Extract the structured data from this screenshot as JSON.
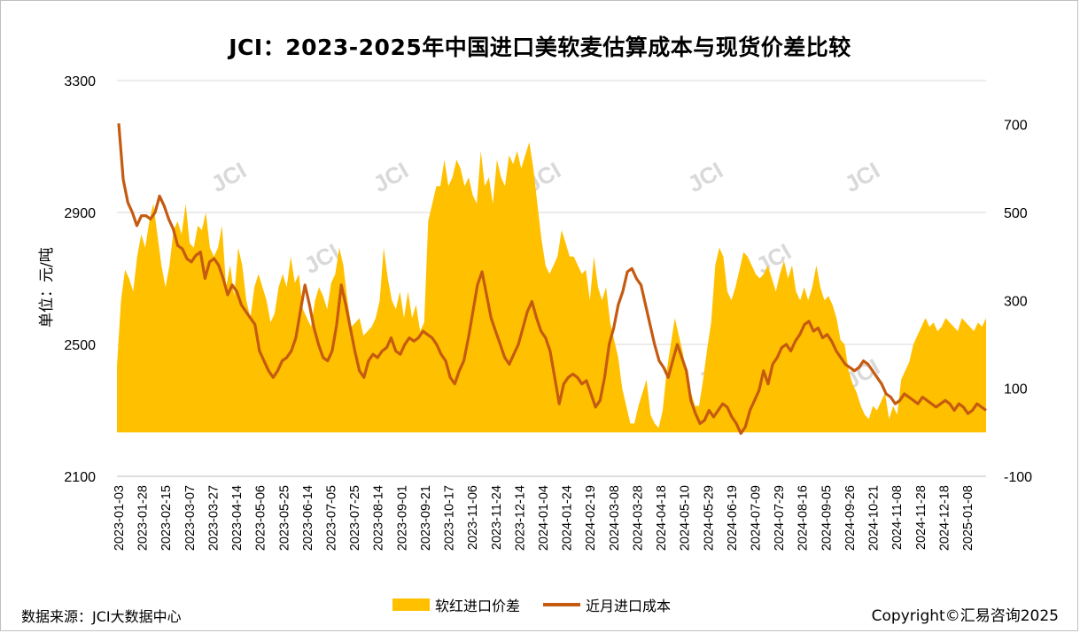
{
  "title": "JCI：2023-2025年中国进口美软麦估算成本与现货价差比较",
  "source": "数据来源：JCI大数据中心",
  "copyright": "Copyright©汇易咨询2025",
  "watermark": "JCI",
  "chart_data": {
    "type": "area+line",
    "title": "JCI：2023-2025年中国进口美软麦估算成本与现货价差比较",
    "ylabel": "单位：元/吨",
    "y_left": {
      "range": [
        2100,
        3300
      ],
      "ticks": [
        "3300",
        "2900",
        "2500",
        "2100"
      ]
    },
    "y_right": {
      "range": [
        -100,
        800
      ],
      "ticks": [
        "700",
        "500",
        "300",
        "100",
        "-100"
      ]
    },
    "x_ticks": [
      "2023-01-03",
      "2023-01-28",
      "2023-02-15",
      "2023-03-07",
      "2023-03-27",
      "2023-04-14",
      "2023-05-06",
      "2023-05-25",
      "2023-06-14",
      "2023-07-05",
      "2023-07-25",
      "2023-08-14",
      "2023-09-01",
      "2023-09-21",
      "2023-10-17",
      "2023-11-06",
      "2023-11-24",
      "2023-12-14",
      "2024-01-04",
      "2024-01-24",
      "2024-02-19",
      "2024-03-08",
      "2024-03-28",
      "2024-04-18",
      "2024-05-10",
      "2024-05-29",
      "2024-06-19",
      "2024-07-09",
      "2024-07-29",
      "2024-08-16",
      "2024-09-05",
      "2024-09-26",
      "2024-10-21",
      "2024-11-08",
      "2024-11-28",
      "2024-12-18",
      "2025-01-08"
    ],
    "series": [
      {
        "name": "软红进口价差",
        "axis": "right",
        "kind": "area",
        "color": "#FFC000",
        "values": [
          150,
          300,
          370,
          350,
          320,
          400,
          450,
          420,
          480,
          520,
          450,
          380,
          330,
          380,
          460,
          480,
          450,
          520,
          430,
          420,
          470,
          460,
          500,
          420,
          400,
          420,
          470,
          330,
          380,
          310,
          420,
          380,
          300,
          260,
          330,
          360,
          330,
          300,
          250,
          270,
          330,
          360,
          330,
          400,
          340,
          360,
          280,
          260,
          240,
          300,
          330,
          310,
          280,
          340,
          360,
          420,
          380,
          300,
          240,
          250,
          260,
          220,
          230,
          240,
          260,
          300,
          420,
          350,
          300,
          280,
          320,
          260,
          320,
          260,
          290,
          230,
          250,
          480,
          520,
          560,
          560,
          620,
          560,
          580,
          620,
          600,
          560,
          580,
          540,
          520,
          640,
          560,
          580,
          520,
          620,
          580,
          560,
          630,
          610,
          640,
          600,
          630,
          660,
          600,
          520,
          440,
          380,
          360,
          380,
          400,
          460,
          430,
          400,
          400,
          380,
          360,
          370,
          300,
          400,
          330,
          300,
          330,
          250,
          210,
          170,
          100,
          60,
          20,
          20,
          60,
          90,
          120,
          40,
          20,
          10,
          50,
          140,
          200,
          260,
          220,
          180,
          120,
          90,
          60,
          60,
          120,
          190,
          250,
          380,
          420,
          400,
          320,
          300,
          330,
          370,
          410,
          400,
          380,
          360,
          350,
          360,
          380,
          350,
          320,
          360,
          390,
          350,
          380,
          320,
          300,
          330,
          300,
          330,
          380,
          330,
          300,
          310,
          290,
          260,
          210,
          200,
          140,
          110,
          90,
          60,
          40,
          30,
          60,
          50,
          70,
          90,
          30,
          60,
          40,
          120,
          140,
          160,
          200,
          220,
          240,
          260,
          240,
          250,
          230,
          240,
          260,
          250,
          240,
          230,
          260,
          250,
          240,
          230,
          250,
          240,
          260
        ]
      },
      {
        "name": "近月进口成本",
        "axis": "left",
        "kind": "line",
        "color": "#C55A11",
        "values": [
          3170,
          3000,
          2930,
          2900,
          2860,
          2890,
          2890,
          2880,
          2900,
          2950,
          2920,
          2880,
          2850,
          2800,
          2790,
          2760,
          2750,
          2770,
          2780,
          2700,
          2750,
          2760,
          2740,
          2700,
          2650,
          2680,
          2660,
          2620,
          2600,
          2580,
          2560,
          2480,
          2450,
          2420,
          2400,
          2420,
          2450,
          2460,
          2480,
          2520,
          2600,
          2680,
          2620,
          2550,
          2500,
          2460,
          2450,
          2480,
          2560,
          2680,
          2620,
          2550,
          2480,
          2420,
          2400,
          2450,
          2470,
          2460,
          2480,
          2490,
          2520,
          2480,
          2470,
          2500,
          2520,
          2510,
          2520,
          2540,
          2530,
          2520,
          2500,
          2470,
          2450,
          2400,
          2380,
          2420,
          2450,
          2520,
          2600,
          2680,
          2720,
          2650,
          2580,
          2540,
          2500,
          2460,
          2440,
          2470,
          2500,
          2550,
          2600,
          2630,
          2580,
          2540,
          2520,
          2480,
          2400,
          2320,
          2380,
          2400,
          2410,
          2400,
          2380,
          2390,
          2350,
          2310,
          2330,
          2400,
          2500,
          2550,
          2620,
          2660,
          2720,
          2730,
          2700,
          2680,
          2620,
          2560,
          2500,
          2450,
          2430,
          2400,
          2450,
          2500,
          2460,
          2420,
          2330,
          2290,
          2260,
          2270,
          2300,
          2280,
          2300,
          2320,
          2310,
          2280,
          2260,
          2230,
          2250,
          2300,
          2330,
          2360,
          2420,
          2380,
          2440,
          2460,
          2490,
          2500,
          2480,
          2510,
          2530,
          2560,
          2570,
          2540,
          2550,
          2520,
          2530,
          2510,
          2480,
          2460,
          2440,
          2430,
          2420,
          2430,
          2450,
          2440,
          2420,
          2400,
          2380,
          2350,
          2340,
          2320,
          2330,
          2350,
          2340,
          2330,
          2320,
          2340,
          2330,
          2320,
          2310,
          2320,
          2330,
          2320,
          2300,
          2320,
          2310,
          2290,
          2300,
          2320,
          2310,
          2300
        ]
      }
    ],
    "legend": "bottom-center",
    "grid": true
  }
}
